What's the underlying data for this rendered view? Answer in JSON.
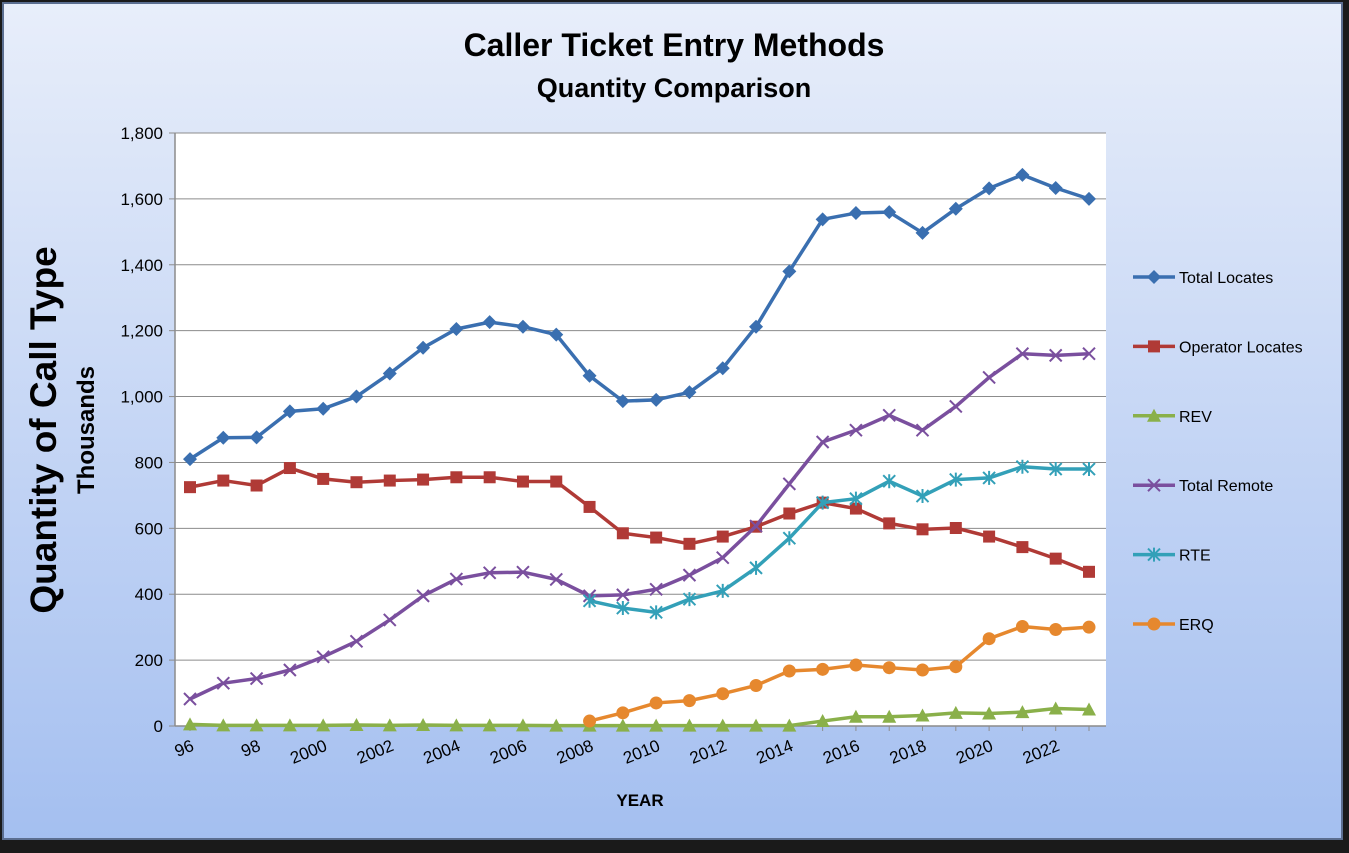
{
  "chart_data": {
    "type": "line",
    "title": "Caller Ticket Entry Methods",
    "subtitle": "Quantity Comparison",
    "ylabel": "Quantity of Call Type",
    "ylabel_units": "Thousands",
    "xlabel": "YEAR",
    "ylim": [
      0,
      1800
    ],
    "yticks": [
      0,
      200,
      400,
      600,
      800,
      1000,
      1200,
      1400,
      1600,
      1800
    ],
    "ytick_labels": [
      "0",
      "200",
      "400",
      "600",
      "800",
      "1,000",
      "1,200",
      "1,400",
      "1,600",
      "1,800"
    ],
    "x_labels": [
      "96",
      "97",
      "98",
      "99",
      "2000",
      "2001",
      "2002",
      "2003",
      "2004",
      "2005",
      "2006",
      "2007",
      "2008",
      "2009",
      "2010",
      "2011",
      "2012",
      "2013",
      "2014",
      "2015",
      "2016",
      "2017",
      "2018",
      "2019",
      "2020",
      "2021",
      "2022",
      "2023"
    ],
    "xtick_labels_shown": [
      "96",
      "",
      "98",
      "",
      "2000",
      "",
      "2002",
      "",
      "2004",
      "",
      "2006",
      "",
      "2008",
      "",
      "2010",
      "",
      "2012",
      "",
      "2014",
      "",
      "2016",
      "",
      "2018",
      "",
      "2020",
      "",
      "2022",
      ""
    ],
    "legend_position": "right",
    "grid": true,
    "series": [
      {
        "name": "Total Locates",
        "color": "#3A6FB0",
        "marker": "diamond",
        "values": [
          810,
          875,
          876,
          955,
          963,
          1000,
          1070,
          1148,
          1205,
          1226,
          1212,
          1188,
          1063,
          986,
          990,
          1013,
          1086,
          1212,
          1380,
          1538,
          1557,
          1560,
          1497,
          1570,
          1632,
          1673,
          1633,
          1600
        ]
      },
      {
        "name": "Operator Locates",
        "color": "#B03A36",
        "marker": "square",
        "values": [
          725,
          745,
          730,
          783,
          750,
          740,
          745,
          748,
          755,
          755,
          742,
          742,
          665,
          585,
          572,
          553,
          575,
          605,
          645,
          678,
          660,
          615,
          597,
          601,
          575,
          543,
          508,
          468
        ]
      },
      {
        "name": "REV",
        "color": "#8AB04A",
        "marker": "triangle",
        "values": [
          5,
          2,
          2,
          2,
          2,
          3,
          2,
          3,
          2,
          2,
          2,
          1,
          1,
          1,
          1,
          1,
          1,
          1,
          1,
          15,
          28,
          28,
          32,
          40,
          38,
          42,
          53,
          50
        ]
      },
      {
        "name": "Total Remote",
        "color": "#7A4F9E",
        "marker": "x",
        "values": [
          82,
          130,
          144,
          170,
          210,
          257,
          322,
          395,
          446,
          465,
          467,
          445,
          395,
          398,
          415,
          458,
          511,
          607,
          735,
          862,
          898,
          943,
          898,
          970,
          1058,
          1130,
          1125,
          1130
        ]
      },
      {
        "name": "RTE",
        "color": "#33A0B8",
        "marker": "star",
        "values": [
          null,
          null,
          null,
          null,
          null,
          null,
          null,
          null,
          null,
          null,
          null,
          null,
          380,
          358,
          345,
          385,
          410,
          480,
          570,
          678,
          690,
          743,
          698,
          748,
          753,
          787,
          780,
          780
        ]
      },
      {
        "name": "ERQ",
        "color": "#E6882E",
        "marker": "circle",
        "values": [
          null,
          null,
          null,
          null,
          null,
          null,
          null,
          null,
          null,
          null,
          null,
          null,
          15,
          40,
          70,
          77,
          98,
          123,
          167,
          172,
          185,
          177,
          170,
          180,
          265,
          302,
          293,
          300
        ]
      }
    ]
  }
}
